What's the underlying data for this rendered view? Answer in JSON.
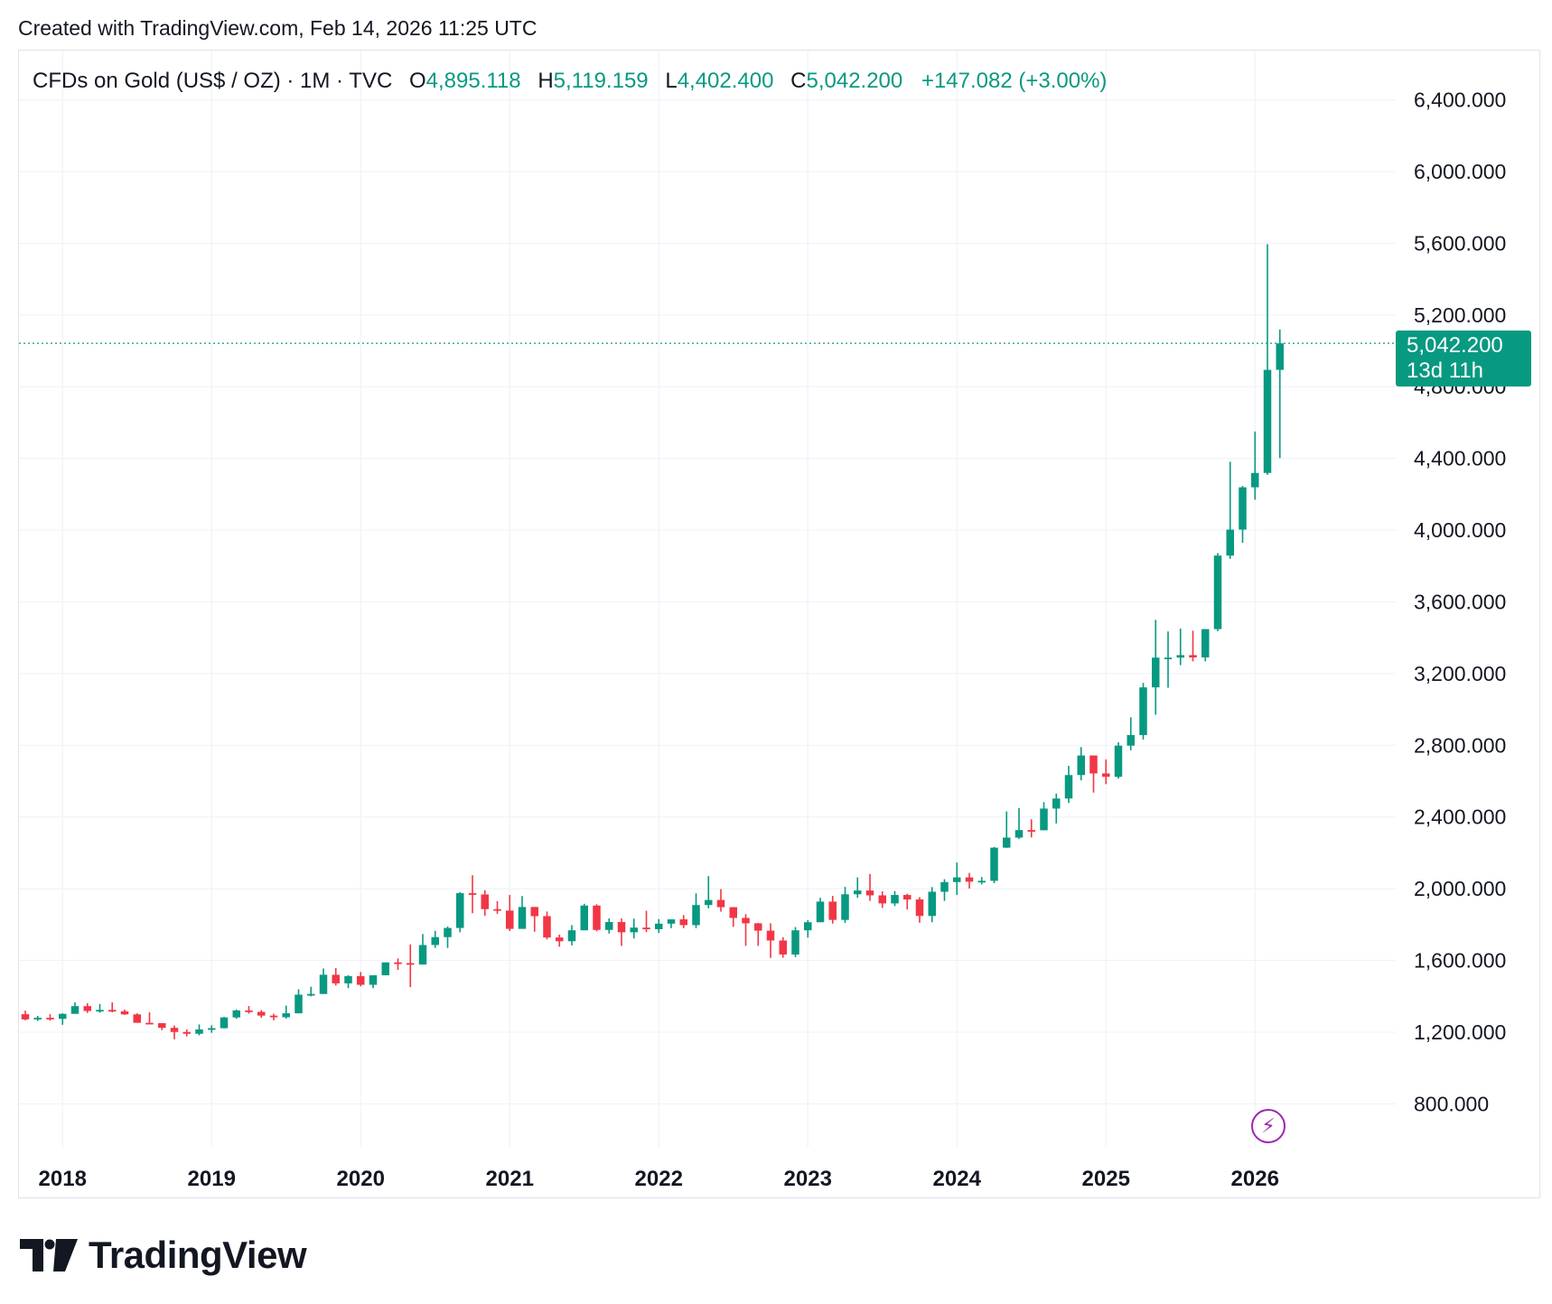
{
  "header": {
    "created_text": "Created with TradingView.com, Feb 14, 2026 11:25 UTC"
  },
  "legend": {
    "symbol": "CFDs on Gold (US$ / OZ) · 1M · TVC",
    "open_label": "O",
    "open": "4,895.118",
    "high_label": "H",
    "high": "5,119.159",
    "low_label": "L",
    "low": "4,402.400",
    "close_label": "C",
    "close": "5,042.200",
    "change": "+147.082 (+3.00%)"
  },
  "price_tag": {
    "value": "5,042.200",
    "countdown": "13d 11h"
  },
  "brand": {
    "name": "TradingView"
  },
  "colors": {
    "up": "#089981",
    "down": "#f23645",
    "grid": "#f0f3fa",
    "axis_text": "#131722",
    "accent_purple": "#9c27b0"
  },
  "chart_data": {
    "type": "candlestick",
    "title": "CFDs on Gold (US$ / OZ) · 1M · TVC",
    "interval": "1M",
    "current_price": 5042.2,
    "y_ticks": [
      "800.000",
      "1,200.000",
      "1,600.000",
      "2,000.000",
      "2,400.000",
      "2,800.000",
      "3,200.000",
      "3,600.000",
      "4,000.000",
      "4,400.000",
      "4,800.000",
      "5,200.000",
      "5,600.000",
      "6,000.000",
      "6,400.000"
    ],
    "y_tick_values": [
      800,
      1200,
      1600,
      2000,
      2400,
      2800,
      3200,
      3600,
      4000,
      4400,
      4800,
      5200,
      5600,
      6000,
      6400
    ],
    "ylim": [
      560,
      6675
    ],
    "x_ticks": [
      "2018",
      "2019",
      "2020",
      "2021",
      "2022",
      "2023",
      "2024",
      "2025",
      "2026"
    ],
    "x_tick_index": [
      3,
      15,
      27,
      39,
      51,
      63,
      75,
      87,
      99
    ],
    "candles": [
      [
        1300,
        1320,
        1266,
        1271
      ],
      [
        1271,
        1290,
        1262,
        1280
      ],
      [
        1280,
        1300,
        1264,
        1274
      ],
      [
        1274,
        1305,
        1241,
        1302
      ],
      [
        1302,
        1366,
        1302,
        1345
      ],
      [
        1345,
        1361,
        1307,
        1318
      ],
      [
        1318,
        1357,
        1308,
        1324
      ],
      [
        1324,
        1366,
        1310,
        1316
      ],
      [
        1316,
        1326,
        1296,
        1299
      ],
      [
        1299,
        1305,
        1272,
        1252
      ],
      [
        1252,
        1310,
        1253,
        1250
      ],
      [
        1250,
        1250,
        1211,
        1224
      ],
      [
        1224,
        1237,
        1160,
        1201
      ],
      [
        1201,
        1215,
        1176,
        1191
      ],
      [
        1191,
        1243,
        1182,
        1215
      ],
      [
        1215,
        1238,
        1196,
        1222
      ],
      [
        1222,
        1285,
        1221,
        1282
      ],
      [
        1282,
        1326,
        1275,
        1321
      ],
      [
        1321,
        1346,
        1303,
        1313
      ],
      [
        1313,
        1323,
        1280,
        1292
      ],
      [
        1292,
        1303,
        1266,
        1283
      ],
      [
        1283,
        1348,
        1275,
        1305
      ],
      [
        1305,
        1439,
        1311,
        1409
      ],
      [
        1409,
        1453,
        1400,
        1413
      ],
      [
        1413,
        1555,
        1412,
        1520
      ],
      [
        1520,
        1557,
        1460,
        1472
      ],
      [
        1472,
        1518,
        1445,
        1512
      ],
      [
        1512,
        1535,
        1455,
        1464
      ],
      [
        1464,
        1480,
        1445,
        1517
      ],
      [
        1517,
        1588,
        1517,
        1589
      ],
      [
        1589,
        1611,
        1547,
        1585
      ],
      [
        1585,
        1689,
        1451,
        1577
      ],
      [
        1577,
        1747,
        1577,
        1686
      ],
      [
        1686,
        1765,
        1670,
        1730
      ],
      [
        1730,
        1789,
        1670,
        1781
      ],
      [
        1781,
        1981,
        1757,
        1975
      ],
      [
        1975,
        2075,
        1863,
        1968
      ],
      [
        1968,
        1992,
        1849,
        1886
      ],
      [
        1886,
        1931,
        1860,
        1878
      ],
      [
        1878,
        1965,
        1764,
        1776
      ],
      [
        1776,
        1959,
        1802,
        1898
      ],
      [
        1898,
        1875,
        1760,
        1847
      ],
      [
        1847,
        1873,
        1717,
        1728
      ],
      [
        1728,
        1744,
        1676,
        1707
      ],
      [
        1707,
        1797,
        1684,
        1768
      ],
      [
        1768,
        1916,
        1769,
        1906
      ],
      [
        1906,
        1913,
        1762,
        1770
      ],
      [
        1770,
        1834,
        1750,
        1814
      ],
      [
        1814,
        1834,
        1681,
        1757
      ],
      [
        1757,
        1833,
        1722,
        1783
      ],
      [
        1783,
        1877,
        1758,
        1774
      ],
      [
        1774,
        1831,
        1753,
        1805
      ],
      [
        1805,
        1829,
        1780,
        1829
      ],
      [
        1829,
        1853,
        1780,
        1797
      ],
      [
        1797,
        1974,
        1780,
        1909
      ],
      [
        1909,
        2070,
        1890,
        1937
      ],
      [
        1937,
        1998,
        1872,
        1897
      ],
      [
        1897,
        1869,
        1787,
        1837
      ],
      [
        1837,
        1858,
        1681,
        1807
      ],
      [
        1807,
        1809,
        1681,
        1766
      ],
      [
        1766,
        1807,
        1614,
        1711
      ],
      [
        1711,
        1729,
        1615,
        1633
      ],
      [
        1633,
        1786,
        1618,
        1768
      ],
      [
        1768,
        1825,
        1727,
        1813
      ],
      [
        1813,
        1949,
        1823,
        1928
      ],
      [
        1928,
        1960,
        1805,
        1826
      ],
      [
        1826,
        2010,
        1809,
        1969
      ],
      [
        1969,
        2063,
        1949,
        1990
      ],
      [
        1990,
        2082,
        1932,
        1963
      ],
      [
        1963,
        1985,
        1893,
        1918
      ],
      [
        1918,
        1987,
        1903,
        1965
      ],
      [
        1965,
        1972,
        1884,
        1940
      ],
      [
        1940,
        1953,
        1810,
        1848
      ],
      [
        1848,
        2009,
        1813,
        1983
      ],
      [
        1983,
        2053,
        1932,
        2037
      ],
      [
        2037,
        2146,
        1965,
        2063
      ],
      [
        2063,
        2088,
        2001,
        2039
      ],
      [
        2039,
        2065,
        2024,
        2044
      ],
      [
        2044,
        2233,
        2031,
        2229
      ],
      [
        2229,
        2431,
        2228,
        2285
      ],
      [
        2285,
        2450,
        2277,
        2327
      ],
      [
        2327,
        2387,
        2286,
        2326
      ],
      [
        2326,
        2483,
        2353,
        2447
      ],
      [
        2447,
        2531,
        2364,
        2503
      ],
      [
        2503,
        2685,
        2478,
        2634
      ],
      [
        2634,
        2790,
        2604,
        2743
      ],
      [
        2743,
        2743,
        2536,
        2643
      ],
      [
        2643,
        2721,
        2583,
        2624
      ],
      [
        2624,
        2817,
        2614,
        2798
      ],
      [
        2798,
        2956,
        2772,
        2857
      ],
      [
        2857,
        3148,
        2832,
        3123
      ],
      [
        3123,
        3500,
        2970,
        3289
      ],
      [
        3289,
        3435,
        3121,
        3289
      ],
      [
        3289,
        3451,
        3247,
        3303
      ],
      [
        3303,
        3439,
        3268,
        3290
      ],
      [
        3290,
        3409,
        3268,
        3448
      ],
      [
        3448,
        3872,
        3436,
        3858
      ],
      [
        3858,
        4381,
        3840,
        4003
      ],
      [
        4003,
        4246,
        3929,
        4239
      ],
      [
        4239,
        4550,
        4170,
        4319
      ],
      [
        4319,
        5595,
        4308,
        4894
      ],
      [
        4894,
        5119,
        4402,
        5042
      ]
    ]
  }
}
